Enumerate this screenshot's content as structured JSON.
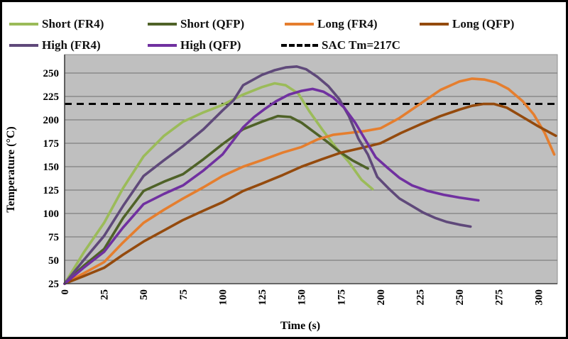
{
  "legend": {
    "items": [
      {
        "id": "short-fr4",
        "label": "Short (FR4)",
        "color": "#9BBB59",
        "style": "solid"
      },
      {
        "id": "short-qfp",
        "label": "Short (QFP)",
        "color": "#4F6228",
        "style": "solid"
      },
      {
        "id": "long-fr4",
        "label": "Long (FR4)",
        "color": "#E57E2E",
        "style": "solid"
      },
      {
        "id": "long-qfp",
        "label": "Long (QFP)",
        "color": "#944A0D",
        "style": "solid"
      },
      {
        "id": "high-fr4",
        "label": "High (FR4)",
        "color": "#5F497A",
        "style": "solid"
      },
      {
        "id": "high-qfp",
        "label": "High (QFP)",
        "color": "#7030A0",
        "style": "solid"
      },
      {
        "id": "sac-tm",
        "label": "SAC Tm=217C",
        "color": "#000000",
        "style": "dashed"
      }
    ]
  },
  "chart_data": {
    "type": "line",
    "title": "",
    "xlabel": "Time (s)",
    "ylabel": "Temperature (°C)",
    "xlim": [
      0,
      312
    ],
    "ylim": [
      25,
      268
    ],
    "x_ticks": [
      0,
      25,
      50,
      75,
      100,
      125,
      150,
      175,
      200,
      225,
      250,
      275,
      300
    ],
    "y_ticks": [
      25,
      50,
      75,
      100,
      125,
      150,
      175,
      200,
      225,
      250
    ],
    "grid": "horizontal",
    "plot_bg": "#BFBFBF",
    "gridline_color": "#7F7F7F",
    "axis_color": "#404040",
    "reference_line": {
      "label": "SAC Tm=217C",
      "value": 217,
      "color": "#000000",
      "style": "dashed"
    },
    "series": [
      {
        "id": "short-fr4",
        "name": "Short (FR4)",
        "color": "#9BBB59",
        "points": [
          [
            0,
            25
          ],
          [
            12,
            58
          ],
          [
            25,
            90
          ],
          [
            37,
            127
          ],
          [
            50,
            161
          ],
          [
            63,
            183
          ],
          [
            75,
            198
          ],
          [
            88,
            208
          ],
          [
            100,
            216
          ],
          [
            113,
            227
          ],
          [
            125,
            235
          ],
          [
            133,
            239
          ],
          [
            140,
            237
          ],
          [
            148,
            228
          ],
          [
            155,
            209
          ],
          [
            163,
            190
          ],
          [
            172,
            170
          ],
          [
            180,
            155
          ],
          [
            188,
            136
          ],
          [
            195,
            126
          ]
        ]
      },
      {
        "id": "short-qfp",
        "name": "Short (QFP)",
        "color": "#4F6228",
        "points": [
          [
            0,
            25
          ],
          [
            12,
            44
          ],
          [
            25,
            62
          ],
          [
            37,
            95
          ],
          [
            50,
            124
          ],
          [
            63,
            134
          ],
          [
            75,
            142
          ],
          [
            88,
            158
          ],
          [
            100,
            174
          ],
          [
            113,
            190
          ],
          [
            125,
            198
          ],
          [
            135,
            204
          ],
          [
            143,
            203
          ],
          [
            150,
            197
          ],
          [
            158,
            187
          ],
          [
            166,
            177
          ],
          [
            174,
            166
          ],
          [
            182,
            157
          ],
          [
            192,
            148
          ]
        ]
      },
      {
        "id": "long-fr4",
        "name": "Long (FR4)",
        "color": "#E57E2E",
        "points": [
          [
            0,
            25
          ],
          [
            12,
            36
          ],
          [
            25,
            48
          ],
          [
            37,
            69
          ],
          [
            50,
            90
          ],
          [
            63,
            104
          ],
          [
            75,
            116
          ],
          [
            88,
            128
          ],
          [
            100,
            140
          ],
          [
            113,
            150
          ],
          [
            125,
            157
          ],
          [
            138,
            165
          ],
          [
            150,
            171
          ],
          [
            160,
            179
          ],
          [
            170,
            184
          ],
          [
            180,
            186
          ],
          [
            190,
            188
          ],
          [
            200,
            191
          ],
          [
            212,
            202
          ],
          [
            225,
            217
          ],
          [
            238,
            232
          ],
          [
            250,
            241
          ],
          [
            258,
            244
          ],
          [
            266,
            243
          ],
          [
            273,
            240
          ],
          [
            281,
            233
          ],
          [
            290,
            220
          ],
          [
            297,
            206
          ],
          [
            304,
            186
          ],
          [
            310,
            163
          ]
        ]
      },
      {
        "id": "long-qfp",
        "name": "Long (QFP)",
        "color": "#944A0D",
        "points": [
          [
            0,
            25
          ],
          [
            12,
            33
          ],
          [
            25,
            42
          ],
          [
            37,
            56
          ],
          [
            50,
            70
          ],
          [
            63,
            82
          ],
          [
            75,
            93
          ],
          [
            88,
            103
          ],
          [
            100,
            112
          ],
          [
            113,
            124
          ],
          [
            125,
            132
          ],
          [
            138,
            141
          ],
          [
            150,
            150
          ],
          [
            163,
            158
          ],
          [
            175,
            165
          ],
          [
            188,
            170
          ],
          [
            200,
            175
          ],
          [
            213,
            186
          ],
          [
            225,
            195
          ],
          [
            238,
            204
          ],
          [
            250,
            211
          ],
          [
            258,
            215
          ],
          [
            265,
            217
          ],
          [
            272,
            217
          ],
          [
            280,
            213
          ],
          [
            290,
            203
          ],
          [
            300,
            193
          ],
          [
            311,
            183
          ]
        ]
      },
      {
        "id": "high-fr4",
        "name": "High (FR4)",
        "color": "#5F497A",
        "points": [
          [
            0,
            25
          ],
          [
            12,
            50
          ],
          [
            25,
            76
          ],
          [
            37,
            108
          ],
          [
            50,
            140
          ],
          [
            63,
            157
          ],
          [
            75,
            172
          ],
          [
            88,
            190
          ],
          [
            100,
            210
          ],
          [
            107,
            221
          ],
          [
            113,
            237
          ],
          [
            125,
            248
          ],
          [
            133,
            253
          ],
          [
            140,
            256
          ],
          [
            147,
            257
          ],
          [
            153,
            254
          ],
          [
            160,
            246
          ],
          [
            167,
            236
          ],
          [
            174,
            222
          ],
          [
            180,
            204
          ],
          [
            186,
            180
          ],
          [
            192,
            163
          ],
          [
            198,
            139
          ],
          [
            205,
            127
          ],
          [
            212,
            116
          ],
          [
            220,
            108
          ],
          [
            227,
            101
          ],
          [
            235,
            95
          ],
          [
            242,
            91
          ],
          [
            250,
            88
          ],
          [
            257,
            86
          ]
        ]
      },
      {
        "id": "high-qfp",
        "name": "High (QFP)",
        "color": "#7030A0",
        "points": [
          [
            0,
            25
          ],
          [
            12,
            42
          ],
          [
            25,
            59
          ],
          [
            37,
            85
          ],
          [
            50,
            110
          ],
          [
            63,
            121
          ],
          [
            75,
            130
          ],
          [
            88,
            146
          ],
          [
            100,
            163
          ],
          [
            113,
            192
          ],
          [
            120,
            203
          ],
          [
            127,
            212
          ],
          [
            134,
            220
          ],
          [
            142,
            227
          ],
          [
            150,
            231
          ],
          [
            157,
            233
          ],
          [
            164,
            230
          ],
          [
            170,
            224
          ],
          [
            177,
            213
          ],
          [
            184,
            197
          ],
          [
            190,
            180
          ],
          [
            197,
            160
          ],
          [
            205,
            148
          ],
          [
            212,
            138
          ],
          [
            220,
            130
          ],
          [
            230,
            124
          ],
          [
            240,
            120
          ],
          [
            250,
            117
          ],
          [
            262,
            114
          ]
        ]
      }
    ]
  }
}
